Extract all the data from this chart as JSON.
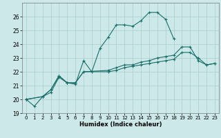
{
  "background_color": "#cce8e8",
  "grid_color": "#aacccc",
  "line_color": "#1a6e6a",
  "xlabel": "Humidex (Indice chaleur)",
  "xlim": [
    -0.5,
    23.5
  ],
  "ylim": [
    19,
    27
  ],
  "yticks": [
    19,
    20,
    21,
    22,
    23,
    24,
    25,
    26
  ],
  "xticks": [
    0,
    1,
    2,
    3,
    4,
    5,
    6,
    7,
    8,
    9,
    10,
    11,
    12,
    13,
    14,
    15,
    16,
    17,
    18,
    19,
    20,
    21,
    22,
    23
  ],
  "line1_x": [
    0,
    1,
    2,
    3,
    4,
    5,
    6,
    7,
    8,
    9,
    10,
    11,
    12,
    13,
    14,
    15,
    16,
    17,
    18
  ],
  "line1_y": [
    20.0,
    19.5,
    20.2,
    20.5,
    21.6,
    21.2,
    21.1,
    22.8,
    22.0,
    23.7,
    24.5,
    25.4,
    25.4,
    25.3,
    25.7,
    26.3,
    26.3,
    25.8,
    24.4
  ],
  "line2_x": [
    0,
    2,
    3,
    4,
    5,
    6,
    7,
    10,
    11,
    12,
    13,
    14,
    15,
    16,
    17,
    18,
    19,
    20,
    21,
    22,
    23
  ],
  "line2_y": [
    20.0,
    20.2,
    20.7,
    21.7,
    21.2,
    21.2,
    22.0,
    22.1,
    22.3,
    22.5,
    22.5,
    22.7,
    22.8,
    23.0,
    23.1,
    23.2,
    23.8,
    23.8,
    22.8,
    22.5,
    22.6
  ],
  "line3_x": [
    0,
    2,
    3,
    4,
    5,
    6,
    7,
    10,
    11,
    12,
    13,
    14,
    15,
    16,
    17,
    18,
    19,
    20,
    21,
    22,
    23
  ],
  "line3_y": [
    20.0,
    20.2,
    20.7,
    21.7,
    21.2,
    21.2,
    22.0,
    22.0,
    22.1,
    22.3,
    22.4,
    22.5,
    22.6,
    22.7,
    22.8,
    22.9,
    23.4,
    23.4,
    23.0,
    22.5,
    22.6
  ],
  "marker": "+",
  "markersize": 3,
  "linewidth": 0.8
}
